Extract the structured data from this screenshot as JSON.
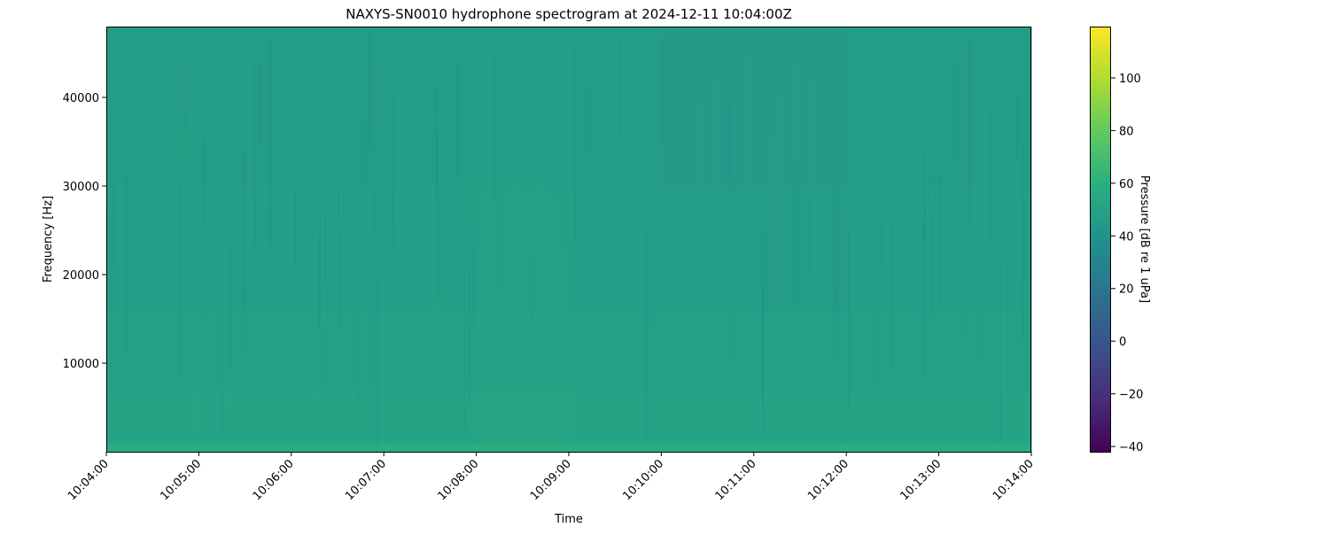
{
  "chart_data": {
    "type": "heatmap",
    "title": "NAXYS-SN0010 hydrophone spectrogram at 2024-12-11 10:04:00Z",
    "xlabel": "Time",
    "ylabel": "Frequency [Hz]",
    "colorbar_label": "Pressure [dB re 1 uPa]",
    "colormap": "viridis",
    "xlim": [
      "10:04:00",
      "10:14:00"
    ],
    "ylim": [
      0,
      48000
    ],
    "clim": [
      -42,
      119.5
    ],
    "x_ticks": [
      "10:04:00",
      "10:05:00",
      "10:06:00",
      "10:07:00",
      "10:08:00",
      "10:09:00",
      "10:10:00",
      "10:11:00",
      "10:12:00",
      "10:13:00",
      "10:14:00"
    ],
    "y_ticks": [
      10000,
      20000,
      30000,
      40000
    ],
    "y_tick_labels": [
      "10000",
      "20000",
      "30000",
      "40000"
    ],
    "colorbar_ticks": [
      -40,
      -20,
      0,
      20,
      40,
      60,
      80,
      100
    ],
    "colorbar_tick_labels": [
      "−40",
      "−20",
      "0",
      "20",
      "40",
      "60",
      "80",
      "100"
    ],
    "grid": false,
    "time_bins": [
      "10:04",
      "10:05",
      "10:06",
      "10:07",
      "10:08",
      "10:09",
      "10:10",
      "10:11",
      "10:12",
      "10:13"
    ],
    "frequency_bands_hz": [
      [
        0,
        1000
      ],
      [
        1000,
        7000
      ],
      [
        7000,
        16000
      ],
      [
        16000,
        30000
      ],
      [
        30000,
        42000
      ],
      [
        42000,
        48000
      ]
    ],
    "z_db": [
      [
        58,
        58,
        58,
        58,
        59,
        58,
        58,
        58,
        58,
        58
      ],
      [
        51,
        51,
        51,
        51,
        52,
        51,
        51,
        51,
        51,
        51
      ],
      [
        49,
        49,
        49,
        49,
        50,
        49,
        49,
        49,
        49,
        49
      ],
      [
        48,
        48,
        48,
        48,
        49,
        48,
        47,
        47,
        48,
        48
      ],
      [
        47,
        47,
        47,
        47,
        48,
        47,
        46,
        46,
        47,
        47
      ],
      [
        47,
        47,
        47,
        47,
        48,
        47,
        46,
        46,
        47,
        47
      ]
    ]
  }
}
